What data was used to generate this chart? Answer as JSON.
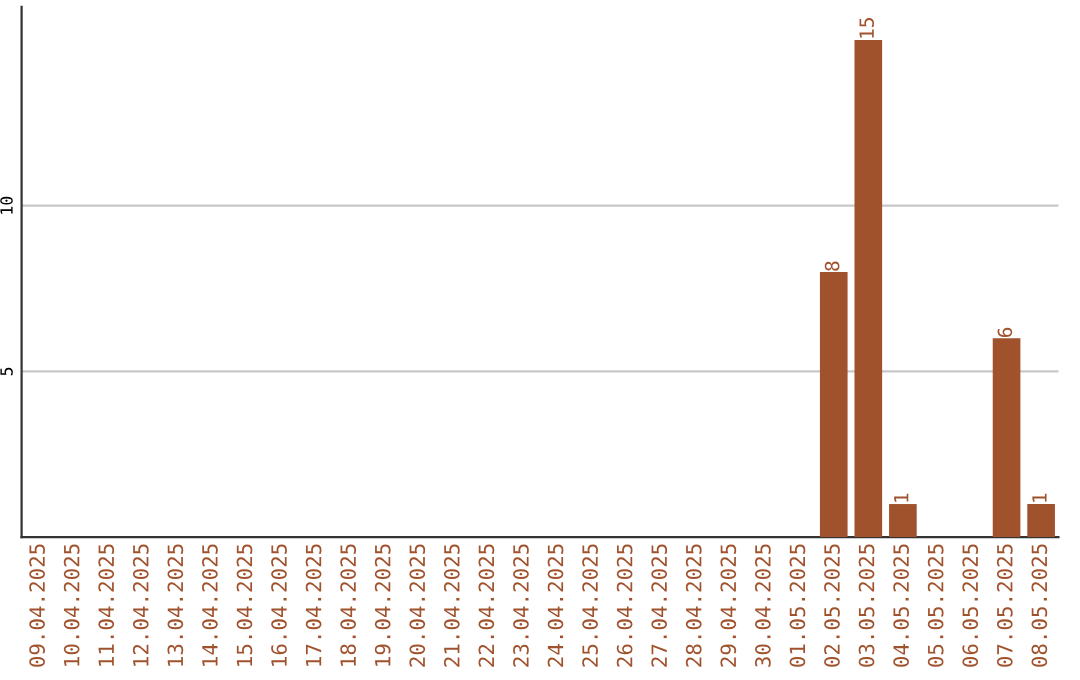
{
  "chart_data": {
    "type": "bar",
    "categories": [
      "09.04.2025",
      "10.04.2025",
      "11.04.2025",
      "12.04.2025",
      "13.04.2025",
      "14.04.2025",
      "15.04.2025",
      "16.04.2025",
      "17.04.2025",
      "18.04.2025",
      "19.04.2025",
      "20.04.2025",
      "21.04.2025",
      "22.04.2025",
      "23.04.2025",
      "24.04.2025",
      "25.04.2025",
      "26.04.2025",
      "27.04.2025",
      "28.04.2025",
      "29.04.2025",
      "30.04.2025",
      "01.05.2025",
      "02.05.2025",
      "03.05.2025",
      "04.05.2025",
      "05.05.2025",
      "06.05.2025",
      "07.05.2025",
      "08.05.2025"
    ],
    "values": [
      0,
      0,
      0,
      0,
      0,
      0,
      0,
      0,
      0,
      0,
      0,
      0,
      0,
      0,
      0,
      0,
      0,
      0,
      0,
      0,
      0,
      0,
      0,
      8,
      15,
      1,
      0,
      0,
      6,
      1
    ],
    "value_labels": [
      null,
      null,
      null,
      null,
      null,
      null,
      null,
      null,
      null,
      null,
      null,
      null,
      null,
      null,
      null,
      null,
      null,
      null,
      null,
      null,
      null,
      null,
      null,
      "8",
      "15",
      "1",
      null,
      null,
      "6",
      "1"
    ],
    "color": "#a0522d",
    "ylim": [
      0,
      16
    ],
    "yticks": [
      5,
      10
    ],
    "grid": "y"
  }
}
